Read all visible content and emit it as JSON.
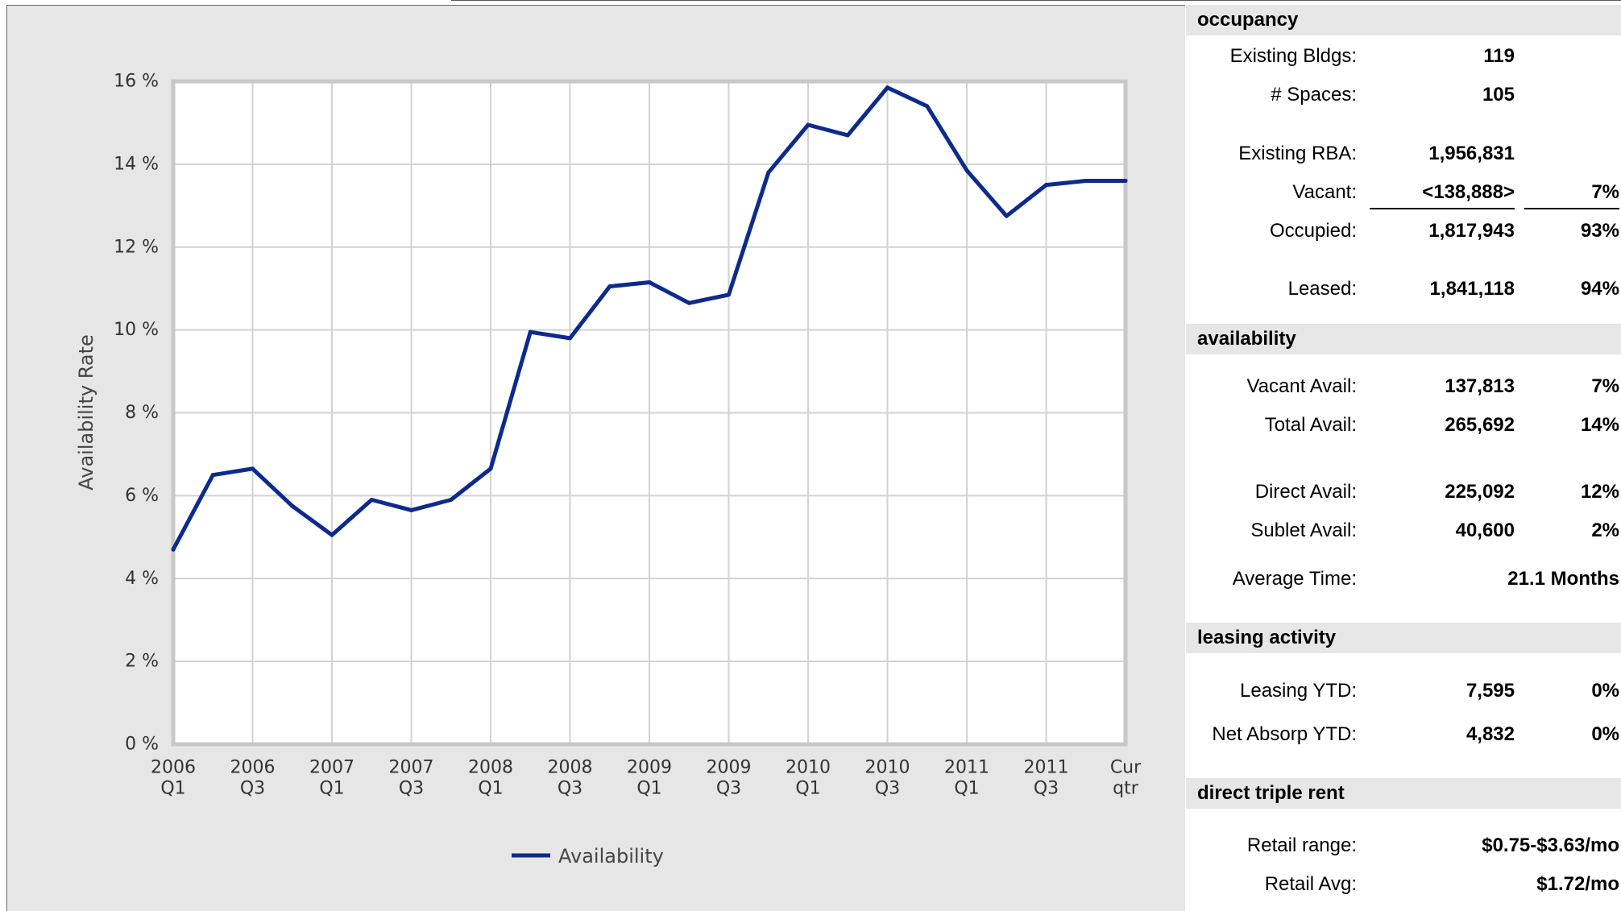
{
  "chart_data": {
    "type": "line",
    "ylabel": "Availability Rate",
    "xlabel": "",
    "ylim": [
      0,
      16
    ],
    "y_ticks": [
      "0 %",
      "2 %",
      "4 %",
      "6 %",
      "8 %",
      "10 %",
      "12 %",
      "14 %",
      "16 %"
    ],
    "x_tick_labels": [
      [
        "2006",
        "Q1"
      ],
      [
        "2006",
        "Q3"
      ],
      [
        "2007",
        "Q1"
      ],
      [
        "2007",
        "Q3"
      ],
      [
        "2008",
        "Q1"
      ],
      [
        "2008",
        "Q3"
      ],
      [
        "2009",
        "Q1"
      ],
      [
        "2009",
        "Q3"
      ],
      [
        "2010",
        "Q1"
      ],
      [
        "2010",
        "Q3"
      ],
      [
        "2011",
        "Q1"
      ],
      [
        "2011",
        "Q3"
      ],
      [
        "Cur",
        "qtr"
      ]
    ],
    "categories": [
      "2006 Q1",
      "2006 Q2",
      "2006 Q3",
      "2006 Q4",
      "2007 Q1",
      "2007 Q2",
      "2007 Q3",
      "2007 Q4",
      "2008 Q1",
      "2008 Q2",
      "2008 Q3",
      "2008 Q4",
      "2009 Q1",
      "2009 Q2",
      "2009 Q3",
      "2009 Q4",
      "2010 Q1",
      "2010 Q2",
      "2010 Q3",
      "2010 Q4",
      "2011 Q1",
      "2011 Q2",
      "2011 Q3",
      "2011 Q4",
      "Cur qtr"
    ],
    "series": [
      {
        "name": "Availability",
        "color": "#0d2a8c",
        "values": [
          4.7,
          6.5,
          6.65,
          5.75,
          5.05,
          5.9,
          5.65,
          5.9,
          6.65,
          9.95,
          9.8,
          11.05,
          11.15,
          10.65,
          10.85,
          13.8,
          14.95,
          14.7,
          15.85,
          15.4,
          13.85,
          12.75,
          13.5,
          13.6,
          13.6
        ]
      }
    ],
    "grid": true,
    "legend": "bottom-center"
  },
  "stats": {
    "occupancy": {
      "header": "occupancy",
      "existing_bldgs_label": "Existing Bldgs:",
      "existing_bldgs": "119",
      "spaces_label": "# Spaces:",
      "spaces": "105",
      "existing_rba_label": "Existing RBA:",
      "existing_rba": "1,956,831",
      "vacant_label": "Vacant:",
      "vacant": "<138,888>",
      "vacant_pct": "7%",
      "occupied_label": "Occupied:",
      "occupied": "1,817,943",
      "occupied_pct": "93%",
      "leased_label": "Leased:",
      "leased": "1,841,118",
      "leased_pct": "94%"
    },
    "availability": {
      "header": "availability",
      "vacant_avail_label": "Vacant Avail:",
      "vacant_avail": "137,813",
      "vacant_avail_pct": "7%",
      "total_avail_label": "Total Avail:",
      "total_avail": "265,692",
      "total_avail_pct": "14%",
      "direct_avail_label": "Direct Avail:",
      "direct_avail": "225,092",
      "direct_avail_pct": "12%",
      "sublet_avail_label": "Sublet Avail:",
      "sublet_avail": "40,600",
      "sublet_avail_pct": "2%",
      "avg_time_label": "Average Time:",
      "avg_time": "21.1 Months"
    },
    "leasing": {
      "header": "leasing activity",
      "leasing_ytd_label": "Leasing YTD:",
      "leasing_ytd": "7,595",
      "leasing_ytd_pct": "0%",
      "net_absorp_label": "Net Absorp YTD:",
      "net_absorp": "4,832",
      "net_absorp_pct": "0%"
    },
    "rent": {
      "header": "direct triple rent",
      "range_label": "Retail range:",
      "range": "$0.75-$3.63/mo",
      "avg_label": "Retail Avg:",
      "avg": "$1.72/mo"
    }
  }
}
